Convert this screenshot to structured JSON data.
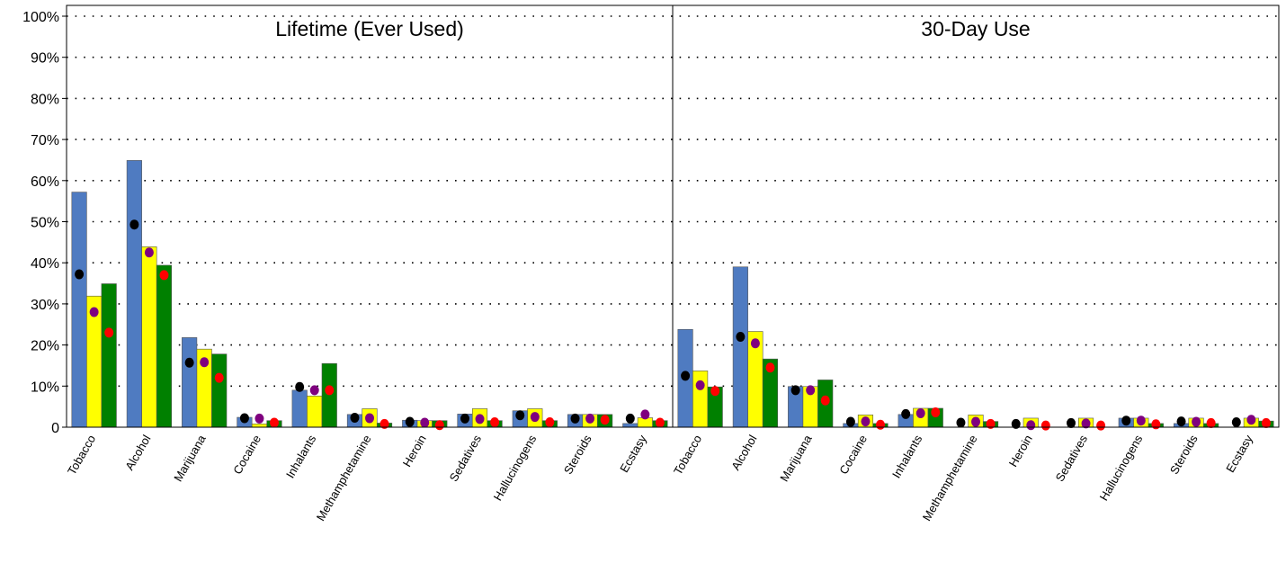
{
  "chart_data": {
    "type": "bar",
    "ylim": [
      0,
      100
    ],
    "yticks": [
      "0",
      "10%",
      "20%",
      "30%",
      "40%",
      "50%",
      "60%",
      "70%",
      "80%",
      "90%",
      "100%"
    ],
    "grid": "dotted horizontal",
    "colors": {
      "bar1": "#4f7bc1",
      "bar2": "#ffff00",
      "bar3": "#008000",
      "dot1": "#000000",
      "dot2": "#7f007f",
      "dot3": "#ff0000"
    },
    "panels": [
      {
        "title": "Lifetime (Ever Used)",
        "categories": [
          "Tobacco",
          "Alcohol",
          "Marijuana",
          "Cocaine",
          "Inhalants",
          "Methamphetamine",
          "Heroin",
          "Sedatives",
          "Hallucinogens",
          "Steroids",
          "Ecstasy"
        ],
        "bars": [
          [
            57.2,
            64.9,
            21.8,
            2.4,
            9.0,
            3.1,
            1.7,
            3.2,
            4.0,
            3.1,
            0.9
          ],
          [
            31.9,
            43.9,
            19.0,
            0.8,
            7.6,
            4.5,
            1.6,
            4.5,
            4.5,
            3.1,
            2.3
          ],
          [
            34.9,
            39.4,
            17.8,
            1.6,
            15.5,
            1.0,
            1.6,
            1.6,
            1.6,
            3.1,
            1.6
          ]
        ],
        "markers": [
          [
            37.2,
            49.3,
            15.7,
            2.2,
            9.8,
            2.3,
            1.3,
            2.1,
            2.9,
            2.1,
            2.1
          ],
          [
            28.0,
            42.5,
            15.8,
            2.1,
            9.0,
            2.2,
            1.1,
            2.0,
            2.5,
            2.1,
            3.1
          ],
          [
            23.0,
            37.0,
            12.0,
            1.1,
            9.0,
            0.8,
            0.5,
            1.2,
            1.2,
            1.8,
            1.1
          ]
        ]
      },
      {
        "title": "30-Day Use",
        "categories": [
          "Tobacco",
          "Alcohol",
          "Marijuana",
          "Cocaine",
          "Inhalants",
          "Methamphetamine",
          "Heroin",
          "Sedatives",
          "Hallucinogens",
          "Steroids",
          "Ecstasy"
        ],
        "bars": [
          [
            23.8,
            39.0,
            9.9,
            0.9,
            3.1,
            0.0,
            0.0,
            0.0,
            2.2,
            0.9,
            0.0
          ],
          [
            13.7,
            23.3,
            9.9,
            3.0,
            4.6,
            3.0,
            2.2,
            2.2,
            2.2,
            2.2,
            2.2
          ],
          [
            9.8,
            16.6,
            11.5,
            0.9,
            4.6,
            1.4,
            0.0,
            0.0,
            0.9,
            0.9,
            1.5
          ]
        ],
        "markers": [
          [
            12.5,
            22.0,
            9.0,
            1.3,
            3.2,
            1.1,
            0.8,
            1.0,
            1.6,
            1.4,
            1.2
          ],
          [
            10.2,
            20.4,
            9.0,
            1.4,
            3.4,
            1.3,
            0.5,
            0.9,
            1.6,
            1.3,
            1.8
          ],
          [
            8.8,
            14.5,
            6.5,
            0.6,
            3.6,
            0.8,
            0.4,
            0.4,
            0.7,
            1.0,
            1.0
          ]
        ]
      }
    ]
  }
}
